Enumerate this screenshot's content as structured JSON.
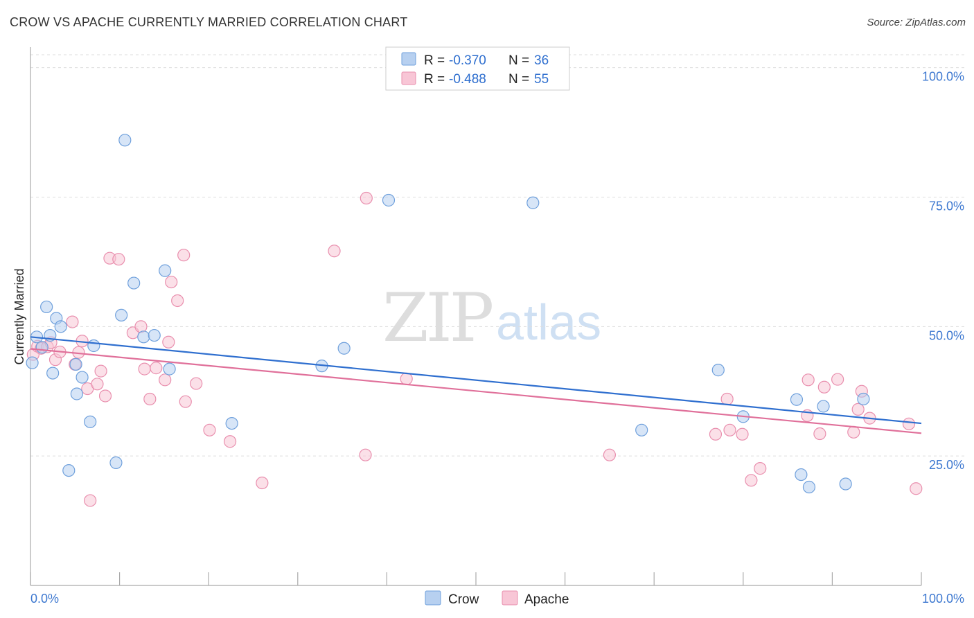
{
  "title": "CROW VS APACHE CURRENTLY MARRIED CORRELATION CHART",
  "source": "Source: ZipAtlas.com",
  "watermark": {
    "zip": "ZIP",
    "atlas": "atlas"
  },
  "colors": {
    "crow_fill": "#b7d0f0",
    "crow_stroke": "#6fa0dc",
    "crow_line": "#2f6fcf",
    "apache_fill": "#f8c6d6",
    "apache_stroke": "#e98fae",
    "apache_line": "#e0709a",
    "grid": "#dddddd",
    "axis": "#aaaaaa"
  },
  "stats": [
    {
      "r_label": "R =",
      "r_value": "-0.370",
      "n_label": "N =",
      "n_value": "36"
    },
    {
      "r_label": "R =",
      "r_value": "-0.488",
      "n_label": "N =",
      "n_value": "55"
    }
  ],
  "chart_data": {
    "type": "scatter",
    "title": "CROW VS APACHE CURRENTLY MARRIED CORRELATION CHART",
    "xlabel": "",
    "ylabel": "Currently Married",
    "xlim": [
      0,
      100
    ],
    "ylim": [
      0,
      102.5
    ],
    "x_tick_labels": [
      "0.0%",
      "100.0%"
    ],
    "y_ticks": [
      {
        "value": 25,
        "label": "25.0%"
      },
      {
        "value": 50,
        "label": "50.0%"
      },
      {
        "value": 75,
        "label": "75.0%"
      },
      {
        "value": 100,
        "label": "100.0%"
      }
    ],
    "legend": [
      "Crow",
      "Apache"
    ],
    "series": [
      {
        "name": "Crow",
        "trend": {
          "x": [
            0,
            100
          ],
          "y": [
            48.0,
            31.3
          ]
        },
        "points": [
          [
            0.2,
            43.0
          ],
          [
            0.7,
            48.0
          ],
          [
            1.3,
            46.0
          ],
          [
            1.8,
            53.8
          ],
          [
            2.2,
            48.3
          ],
          [
            2.5,
            41.0
          ],
          [
            2.9,
            51.6
          ],
          [
            3.4,
            50.0
          ],
          [
            4.3,
            22.2
          ],
          [
            5.1,
            42.7
          ],
          [
            5.2,
            37.0
          ],
          [
            5.8,
            40.2
          ],
          [
            6.7,
            31.6
          ],
          [
            7.1,
            46.3
          ],
          [
            9.6,
            23.7
          ],
          [
            10.2,
            52.2
          ],
          [
            10.6,
            86.0
          ],
          [
            11.6,
            58.4
          ],
          [
            12.7,
            48.0
          ],
          [
            13.9,
            48.3
          ],
          [
            15.1,
            60.8
          ],
          [
            15.6,
            41.8
          ],
          [
            22.6,
            31.3
          ],
          [
            32.7,
            42.4
          ],
          [
            35.2,
            45.8
          ],
          [
            40.2,
            74.4
          ],
          [
            56.4,
            73.9
          ],
          [
            68.6,
            30.0
          ],
          [
            77.2,
            41.6
          ],
          [
            80.0,
            32.6
          ],
          [
            86.0,
            35.9
          ],
          [
            86.5,
            21.4
          ],
          [
            87.4,
            19.0
          ],
          [
            89.0,
            34.6
          ],
          [
            91.5,
            19.6
          ],
          [
            93.5,
            36.0
          ]
        ]
      },
      {
        "name": "Apache",
        "trend": {
          "x": [
            0,
            100
          ],
          "y": [
            45.7,
            29.4
          ]
        },
        "points": [
          [
            0.3,
            44.6
          ],
          [
            0.8,
            46.2
          ],
          [
            1.2,
            45.8
          ],
          [
            1.9,
            46.1
          ],
          [
            2.3,
            46.9
          ],
          [
            2.8,
            43.6
          ],
          [
            3.3,
            45.1
          ],
          [
            4.7,
            50.9
          ],
          [
            5.0,
            42.7
          ],
          [
            5.4,
            45.0
          ],
          [
            5.8,
            47.2
          ],
          [
            6.4,
            38.0
          ],
          [
            6.7,
            16.4
          ],
          [
            7.5,
            38.9
          ],
          [
            7.9,
            41.4
          ],
          [
            8.4,
            36.6
          ],
          [
            8.9,
            63.2
          ],
          [
            9.9,
            63.0
          ],
          [
            11.5,
            48.8
          ],
          [
            12.4,
            50.0
          ],
          [
            12.8,
            41.8
          ],
          [
            13.4,
            36.0
          ],
          [
            14.1,
            42.0
          ],
          [
            15.1,
            39.7
          ],
          [
            15.5,
            47.0
          ],
          [
            15.8,
            58.6
          ],
          [
            16.5,
            55.0
          ],
          [
            17.2,
            63.8
          ],
          [
            17.4,
            35.5
          ],
          [
            18.6,
            39.0
          ],
          [
            20.1,
            30.0
          ],
          [
            22.4,
            27.8
          ],
          [
            26.0,
            19.8
          ],
          [
            34.1,
            64.6
          ],
          [
            37.6,
            25.2
          ],
          [
            37.7,
            74.8
          ],
          [
            42.2,
            39.9
          ],
          [
            65.0,
            25.2
          ],
          [
            76.9,
            29.2
          ],
          [
            78.2,
            36.0
          ],
          [
            78.5,
            30.0
          ],
          [
            79.9,
            29.2
          ],
          [
            80.9,
            20.3
          ],
          [
            81.9,
            22.6
          ],
          [
            87.2,
            32.8
          ],
          [
            87.3,
            39.7
          ],
          [
            88.6,
            29.3
          ],
          [
            89.1,
            38.3
          ],
          [
            90.6,
            39.8
          ],
          [
            92.4,
            29.6
          ],
          [
            92.9,
            34.0
          ],
          [
            93.3,
            37.5
          ],
          [
            94.2,
            32.3
          ],
          [
            98.6,
            31.2
          ],
          [
            99.4,
            18.7
          ]
        ]
      }
    ]
  }
}
